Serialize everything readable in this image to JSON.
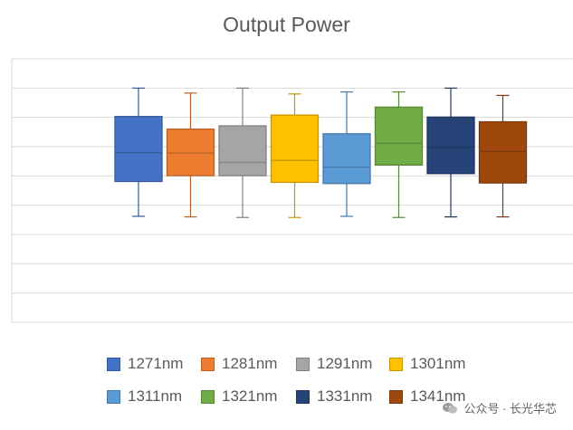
{
  "chart_data": {
    "type": "box",
    "title": "Output Power",
    "xlabel": "",
    "ylabel": "",
    "grid": true,
    "legend_position": "bottom",
    "categories": [
      "1271nm",
      "1281nm",
      "1291nm",
      "1301nm",
      "1311nm",
      "1321nm",
      "1331nm",
      "1341nm"
    ],
    "series": [
      {
        "name": "1271nm",
        "color": "#4472C4",
        "min": 1.62,
        "q1": 2.81,
        "median": 3.8,
        "q3": 5.03,
        "max": 6.0
      },
      {
        "name": "1281nm",
        "color": "#ED7D31",
        "min": 1.6,
        "q1": 3.01,
        "median": 3.78,
        "q3": 4.6,
        "max": 5.83
      },
      {
        "name": "1291nm",
        "color": "#A5A5A5",
        "min": 1.58,
        "q1": 3.01,
        "median": 3.46,
        "q3": 4.71,
        "max": 6.0
      },
      {
        "name": "1301nm",
        "color": "#FFC000",
        "min": 1.58,
        "q1": 2.78,
        "median": 3.53,
        "q3": 5.08,
        "max": 5.8
      },
      {
        "name": "1311nm",
        "color": "#5B9BD5",
        "min": 1.62,
        "q1": 2.74,
        "median": 3.3,
        "q3": 4.44,
        "max": 5.87
      },
      {
        "name": "1321nm",
        "color": "#70AD47",
        "min": 1.58,
        "q1": 3.37,
        "median": 4.11,
        "q3": 5.35,
        "max": 5.87
      },
      {
        "name": "1331nm",
        "color": "#264478",
        "min": 1.6,
        "q1": 3.08,
        "median": 3.98,
        "q3": 5.01,
        "max": 6.0
      },
      {
        "name": "1341nm",
        "color": "#9E480E",
        "min": 1.6,
        "q1": 2.76,
        "median": 3.83,
        "q3": 4.85,
        "max": 5.75
      }
    ],
    "ylim": [
      -2,
      7
    ],
    "yticks": [
      -2,
      -1,
      0,
      1,
      2,
      3,
      4,
      5,
      6,
      7
    ],
    "show_tick_labels": false
  },
  "watermark": {
    "text": "公众号 · 长光华芯",
    "icon": "wechat-icon"
  }
}
